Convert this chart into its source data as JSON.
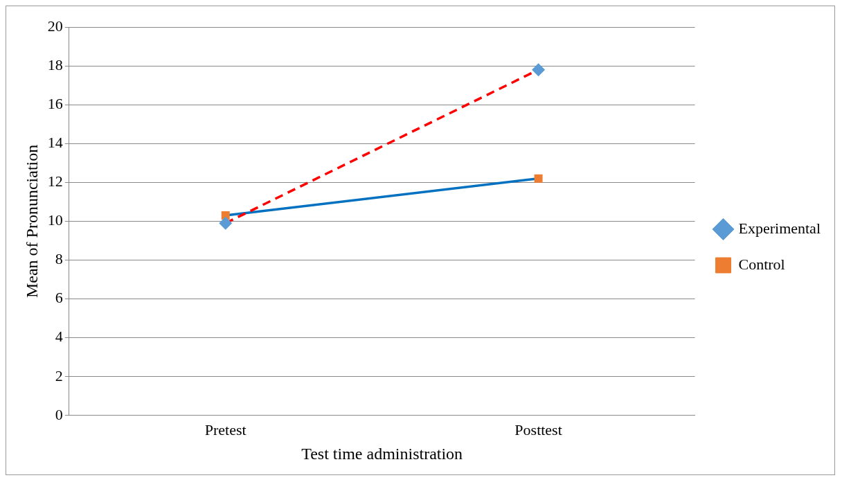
{
  "chart_data": {
    "type": "line",
    "xlabel": "Test time administration",
    "ylabel": "Mean of Pronunciation",
    "categories": [
      "Pretest",
      "Posttest"
    ],
    "series": [
      {
        "name": "Experimental",
        "color": "#ff0000",
        "colors": [
          "#5b9bd5",
          "#5b9bd5"
        ],
        "marker": "diamond",
        "line_style": "dashed",
        "values": [
          9.9,
          17.8
        ]
      },
      {
        "name": "Control",
        "color": "#0070c0",
        "colors": [
          "#ed7d31",
          "#ed7d31"
        ],
        "marker": "square",
        "line_style": "solid",
        "values": [
          10.3,
          12.2
        ]
      }
    ],
    "ylim": [
      0,
      20
    ],
    "yticks": [
      0,
      2,
      4,
      6,
      8,
      10,
      12,
      14,
      16,
      18,
      20
    ],
    "grid": "y",
    "legend": "right"
  }
}
